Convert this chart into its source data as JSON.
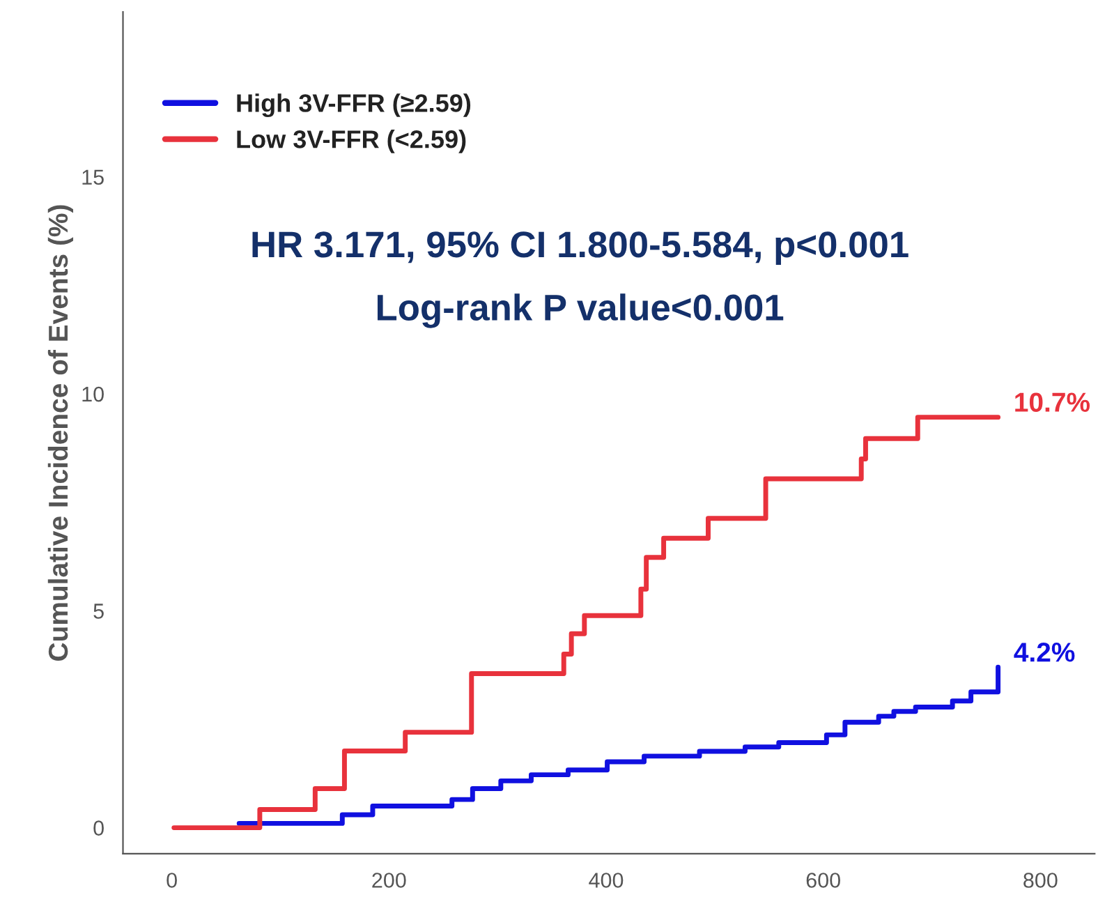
{
  "chart_data": {
    "type": "step",
    "ylabel": "Cumulative Incidence of Events (%)",
    "xlim": [
      -45,
      850
    ],
    "ylim": [
      -0.6,
      18.8
    ],
    "xticks": [
      0,
      200,
      400,
      600,
      800
    ],
    "yticks": [
      0,
      5,
      10,
      15
    ],
    "grid": false,
    "legend": "top left",
    "line_style": "solid",
    "marker": "none",
    "series": [
      {
        "name": "High 3V-FFR (≥2.59)",
        "color": "#1010e0",
        "x": [
          62,
          157,
          185,
          258,
          277,
          303,
          331,
          365,
          401,
          435,
          486,
          528,
          559,
          603,
          620,
          651,
          665,
          685,
          719,
          736,
          761,
          761
        ],
        "values": [
          0.1,
          0.3,
          0.5,
          0.65,
          0.9,
          1.08,
          1.22,
          1.33,
          1.52,
          1.65,
          1.76,
          1.86,
          1.96,
          2.14,
          2.43,
          2.57,
          2.68,
          2.78,
          2.92,
          3.13,
          3.13,
          3.7
        ]
      },
      {
        "name": "Low 3V-FFR (<2.59)",
        "color": "#e8323c",
        "x": [
          2,
          81,
          132,
          159,
          215,
          276,
          361,
          368,
          380,
          432,
          437,
          453,
          494,
          547,
          635,
          639,
          687,
          761
        ],
        "values": [
          0,
          0.42,
          0.9,
          1.77,
          2.2,
          3.55,
          4.0,
          4.47,
          4.89,
          5.5,
          6.23,
          6.67,
          7.13,
          8.04,
          8.5,
          8.97,
          9.46,
          9.46
        ]
      }
    ],
    "annotations": [
      "HR 3.171, 95% CI 1.800-5.584, p<0.001",
      "Log-rank P value<0.001",
      {
        "text": "10.7%",
        "x": 761,
        "y": 9.46
      },
      {
        "text": "4.2%",
        "x": 761,
        "y": 3.7
      }
    ]
  }
}
